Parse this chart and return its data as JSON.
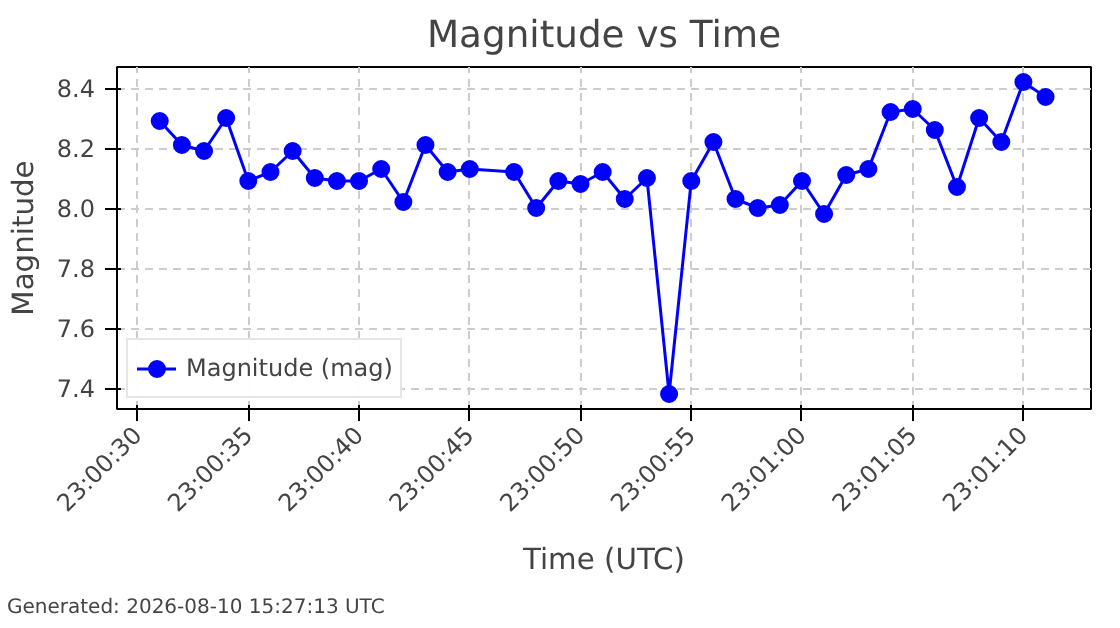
{
  "chart_data": {
    "type": "line",
    "title": "Magnitude vs Time",
    "xlabel": "Time (UTC)",
    "ylabel": "Magnitude",
    "annotations": [
      "Generated: 2026-08-10 15:27:13 UTC"
    ],
    "x": [
      23.008611,
      23.008889,
      23.009167,
      23.009444,
      23.009722,
      23.01,
      23.010278,
      23.010556,
      23.010833,
      23.011111,
      23.011389,
      23.011667,
      23.011944,
      23.012222,
      23.0125,
      23.013056,
      23.013333,
      23.013611,
      23.013889,
      23.014167,
      23.014444,
      23.014722,
      23.015,
      23.015278,
      23.015556,
      23.015833,
      23.016111,
      23.016389,
      23.016667,
      23.016944,
      23.017222,
      23.0175,
      23.017778,
      23.018056,
      23.018333,
      23.018611,
      23.018889,
      23.019167,
      23.019444,
      23.019722
    ],
    "series": [
      {
        "name": "Magnitude (mag)",
        "color": "#0000ff",
        "values": [
          8.29,
          8.21,
          8.19,
          8.3,
          8.09,
          8.12,
          8.19,
          8.1,
          8.09,
          8.09,
          8.13,
          8.02,
          8.21,
          8.12,
          8.13,
          8.12,
          8.0,
          8.09,
          8.08,
          8.12,
          8.03,
          8.1,
          7.38,
          8.09,
          8.22,
          8.03,
          8.0,
          8.01,
          8.09,
          7.98,
          8.11,
          8.13,
          8.32,
          8.33,
          8.26,
          8.07,
          8.3,
          8.22,
          8.42,
          8.37
        ]
      }
    ],
    "xlim": [
      23.008075,
      23.020292
    ],
    "xticks": [
      {
        "value": 23.008333,
        "label": "23:00:30"
      },
      {
        "value": 23.009722,
        "label": "23:00:35"
      },
      {
        "value": 23.011111,
        "label": "23:00:40"
      },
      {
        "value": 23.0125,
        "label": "23:00:45"
      },
      {
        "value": 23.013889,
        "label": "23:00:50"
      },
      {
        "value": 23.015278,
        "label": "23:00:55"
      },
      {
        "value": 23.016667,
        "label": "23:01:00"
      },
      {
        "value": 23.018056,
        "label": "23:01:05"
      },
      {
        "value": 23.019444,
        "label": "23:01:10"
      }
    ],
    "ylim": [
      7.33,
      8.47
    ],
    "yticks": [
      {
        "value": 7.4,
        "label": "7.4"
      },
      {
        "value": 7.6,
        "label": "7.6"
      },
      {
        "value": 7.8,
        "label": "7.8"
      },
      {
        "value": 8.0,
        "label": "8.0"
      },
      {
        "value": 8.2,
        "label": "8.2"
      },
      {
        "value": 8.4,
        "label": "8.4"
      }
    ],
    "grid": true,
    "legend": "bottom left",
    "marker": "circle",
    "line_style": "solid"
  }
}
